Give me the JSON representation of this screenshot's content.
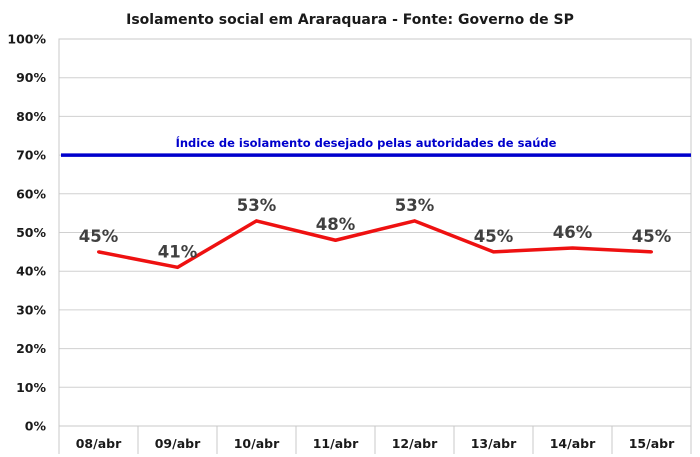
{
  "chart_data": {
    "type": "line",
    "title": "Isolamento social em Araraquara - Fonte: Governo de SP",
    "categories": [
      "08/abr",
      "09/abr",
      "10/abr",
      "11/abr",
      "12/abr",
      "13/abr",
      "14/abr",
      "15/abr"
    ],
    "series": [
      {
        "values": [
          45,
          41,
          53,
          48,
          53,
          45,
          46,
          45
        ],
        "labels": [
          "45%",
          "41%",
          "53%",
          "48%",
          "53%",
          "45%",
          "46%",
          "45%"
        ],
        "color": "#ee1111"
      }
    ],
    "reference_line": {
      "value": 70,
      "label": "Índice de isolamento desejado pelas autoridades de saúde",
      "color": "#0000cc"
    },
    "ylim": [
      0,
      100
    ],
    "yticks": [
      0,
      10,
      20,
      30,
      40,
      50,
      60,
      70,
      80,
      90,
      100
    ],
    "ytick_labels": [
      "0%",
      "10%",
      "20%",
      "30%",
      "40%",
      "50%",
      "60%",
      "70%",
      "80%",
      "90%",
      "100%"
    ],
    "grid": "horizontal",
    "legend": "none"
  }
}
